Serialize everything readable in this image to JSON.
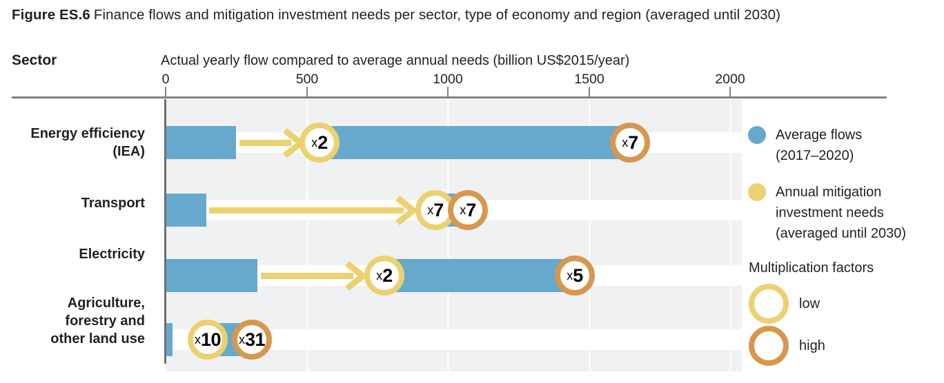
{
  "title": {
    "bold": "Figure ES.6",
    "rest": "Finance flows and mitigation investment needs per sector, type of economy and region (averaged until 2030)"
  },
  "sector_header": "Sector",
  "axis": {
    "title": "Actual yearly flow compared to average annual needs (billion US$2015/year)",
    "ticks": [
      0,
      500,
      1000,
      1500,
      2000
    ],
    "range": [
      0,
      2040
    ]
  },
  "chart_data": {
    "type": "bar",
    "title": "Finance flows and mitigation investment needs per sector, type of economy and region (averaged until 2030)",
    "xlabel": "Actual yearly flow compared to average annual needs (billion US$2015/year)",
    "ylabel": "Sector",
    "xlim": [
      0,
      2040
    ],
    "grid": true,
    "legend_position": "right",
    "categories": [
      "Energy efficiency (IEA)",
      "Transport",
      "Electricity",
      "Agriculture, forestry and other land use"
    ],
    "series": [
      {
        "name": "Average flows (2017–2020)",
        "values": [
          250,
          145,
          325,
          25
        ]
      },
      {
        "name": "Annual mitigation investment needs low estimate (multiplication factor position)",
        "values": [
          545,
          955,
          775,
          150
        ]
      },
      {
        "name": "Annual mitigation investment needs high estimate (multiplication factor position)",
        "values": [
          1645,
          1070,
          1450,
          305
        ]
      }
    ],
    "rows": [
      {
        "sector_lines": [
          "Energy efficiency",
          "(IEA)"
        ],
        "flow": 250,
        "low_factor": "x2",
        "high_factor": "x7",
        "low_pos": 545,
        "high_pos": 1645,
        "arrow": [
          262,
          478
        ]
      },
      {
        "sector_lines": [
          "Transport"
        ],
        "flow": 145,
        "low_factor": "x7",
        "high_factor": "x7",
        "low_pos": 955,
        "high_pos": 1070,
        "arrow": [
          155,
          878
        ]
      },
      {
        "sector_lines": [
          "Electricity"
        ],
        "flow": 325,
        "low_factor": "x2",
        "high_factor": "x5",
        "low_pos": 775,
        "high_pos": 1450,
        "arrow": [
          337,
          700
        ]
      },
      {
        "sector_lines": [
          "Agriculture,",
          "forestry and",
          "other land use"
        ],
        "flow": 25,
        "low_factor": "x10",
        "high_factor": "x31",
        "low_pos": 150,
        "high_pos": 305,
        "arrow": null
      }
    ]
  },
  "legend": {
    "flows": {
      "label_lines": [
        "Average flows",
        "(2017–2020)"
      ],
      "color": "#67A9CD"
    },
    "needs": {
      "label_lines": [
        "Annual mitigation",
        "investment needs",
        "(averaged until 2030)"
      ],
      "color": "#ECD170"
    },
    "factors_heading": "Multiplication factors",
    "low_label": "low",
    "high_label": "high",
    "low_color": "#ECD170",
    "high_color": "#D6974F"
  },
  "colors": {
    "flows_bar": "#67A9CD",
    "needs_arrow": "#ECD170",
    "low_ring": "#ECD170",
    "high_ring": "#D6974F",
    "plot_background": "#F0F1F3",
    "row_band": "#FFFFFF",
    "rule": "#808285"
  }
}
